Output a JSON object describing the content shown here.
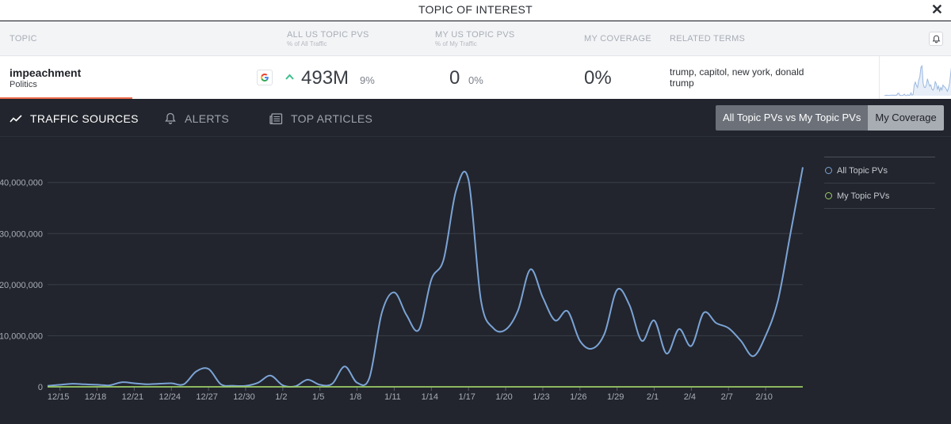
{
  "window": {
    "title": "TOPIC OF INTEREST"
  },
  "header": {
    "topic": "TOPIC",
    "all_us": "ALL US TOPIC PVS",
    "all_us_sub": "% of All Traffic",
    "my_us": "MY US TOPIC PVS",
    "my_us_sub": "% of My Traffic",
    "coverage": "MY COVERAGE",
    "related": "RELATED TERMS"
  },
  "topic_row": {
    "name": "impeachment",
    "category": "Politics",
    "all_pvs": "493M",
    "all_pct": "9%",
    "my_pvs": "0",
    "my_pct": "0%",
    "coverage": "0%",
    "related_terms": "trump, capitol, new york, donald trump"
  },
  "tabs": {
    "traffic": "TRAFFIC SOURCES",
    "alerts": "ALERTS",
    "articles": "TOP ARTICLES"
  },
  "toggle": {
    "option1": "All Topic PVs vs My Topic PVs",
    "option2": "My Coverage"
  },
  "colors": {
    "all_series": "#7ba3d6",
    "my_series": "#9ccc65",
    "accent": "#ee6c4d"
  },
  "chart_data": {
    "type": "line",
    "title": "",
    "xlabel": "",
    "ylabel": "",
    "ylim": [
      0,
      46000000
    ],
    "y_ticks": [
      {
        "value": 0,
        "label": "0"
      },
      {
        "value": 10000000,
        "label": "10,000,000"
      },
      {
        "value": 20000000,
        "label": "20,000,000"
      },
      {
        "value": 30000000,
        "label": "30,000,000"
      },
      {
        "value": 40000000,
        "label": "40,000,000"
      }
    ],
    "x_tick_labels": [
      "12/15",
      "12/18",
      "12/21",
      "12/24",
      "12/27",
      "12/30",
      "1/2",
      "1/5",
      "1/8",
      "1/11",
      "1/14",
      "1/17",
      "1/20",
      "1/23",
      "1/26",
      "1/29",
      "2/1",
      "2/4",
      "2/7",
      "2/10"
    ],
    "legend": [
      "All Topic PVs",
      "My Topic PVs"
    ],
    "series": [
      {
        "name": "All Topic PVs",
        "values": [
          0.2,
          0.4,
          0.6,
          0.5,
          0.4,
          0.3,
          0.9,
          0.7,
          0.5,
          0.6,
          0.7,
          0.5,
          3.0,
          3.5,
          0.5,
          0.2,
          0.2,
          0.8,
          2.2,
          0.3,
          0.1,
          1.4,
          0.4,
          0.6,
          4.0,
          0.8,
          1.8,
          14.5,
          18.5,
          14.0,
          11.2,
          21.0,
          25.0,
          38.5,
          40.5,
          17.0,
          11.5,
          11.2,
          15.0,
          23.0,
          17.5,
          13.0,
          14.8,
          9.0,
          7.5,
          10.5,
          19.0,
          16.0,
          9.0,
          13.0,
          6.5,
          11.3,
          8.0,
          14.5,
          12.5,
          11.5,
          9.0,
          6.0,
          10.0,
          17.0,
          30.0,
          43.0
        ]
      },
      {
        "name": "My Topic PVs",
        "values": [
          0,
          0,
          0,
          0,
          0,
          0,
          0,
          0,
          0,
          0,
          0,
          0,
          0,
          0,
          0,
          0,
          0,
          0,
          0,
          0,
          0,
          0,
          0,
          0,
          0,
          0,
          0,
          0,
          0,
          0,
          0,
          0,
          0,
          0,
          0,
          0,
          0,
          0,
          0,
          0,
          0,
          0,
          0,
          0,
          0,
          0,
          0,
          0,
          0,
          0,
          0,
          0,
          0,
          0,
          0,
          0,
          0,
          0,
          0,
          0,
          0,
          0
        ]
      }
    ]
  }
}
